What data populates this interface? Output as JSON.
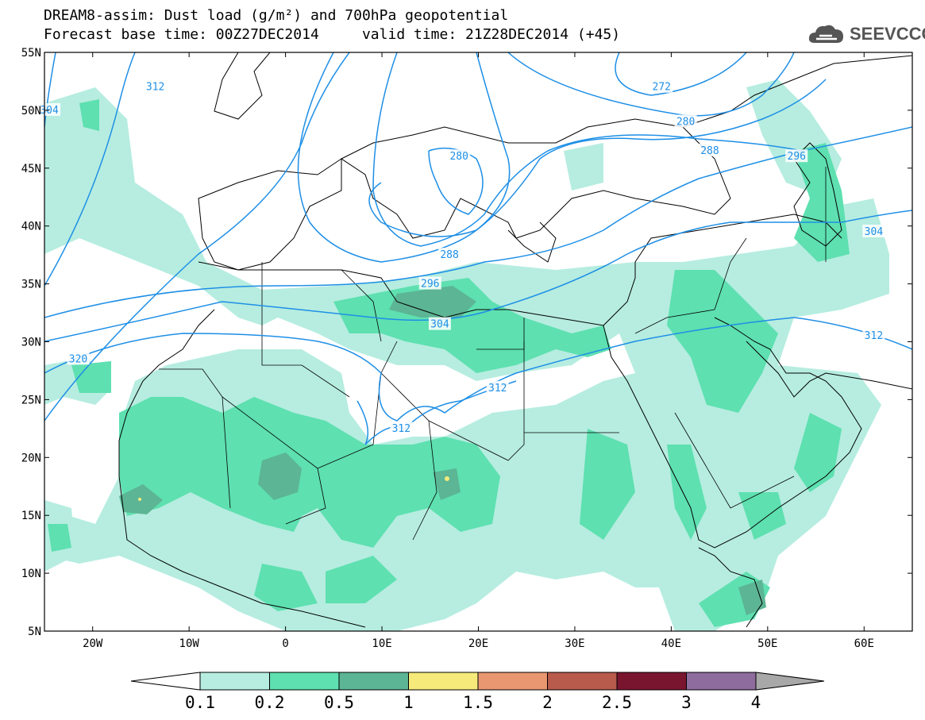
{
  "header": {
    "title": "DREAM8-assim: Dust load (g/m²) and 700hPa geopotential",
    "subtitle": "Forecast base time: 00Z27DEC2014     valid time: 21Z28DEC2014 (+45)"
  },
  "logo": {
    "text": "SEEVCCC",
    "icon": "cloud-icon"
  },
  "axes": {
    "lat_labels": [
      "55N",
      "50N",
      "45N",
      "40N",
      "35N",
      "30N",
      "25N",
      "20N",
      "15N",
      "10N",
      "5N"
    ],
    "lat_values": [
      55,
      50,
      45,
      40,
      35,
      30,
      25,
      20,
      15,
      10,
      5
    ],
    "lon_labels": [
      "20W",
      "10W",
      "0",
      "10E",
      "20E",
      "30E",
      "40E",
      "50E",
      "60E"
    ],
    "lon_values": [
      -20,
      -10,
      0,
      10,
      20,
      30,
      40,
      50,
      60
    ],
    "lon_range": [
      -25,
      65
    ],
    "lat_range": [
      5,
      55
    ],
    "grid": true
  },
  "contour_labels": [
    {
      "text": "312",
      "lon": -13.5,
      "lat": 52
    },
    {
      "text": "304",
      "lon": -24.5,
      "lat": 50
    },
    {
      "text": "272",
      "lon": 39,
      "lat": 52
    },
    {
      "text": "280",
      "lon": 41.5,
      "lat": 49
    },
    {
      "text": "288",
      "lon": 44,
      "lat": 46.5
    },
    {
      "text": "296",
      "lon": 53,
      "lat": 46
    },
    {
      "text": "280",
      "lon": 18,
      "lat": 46
    },
    {
      "text": "288",
      "lon": 17,
      "lat": 37.5
    },
    {
      "text": "296",
      "lon": 15,
      "lat": 35
    },
    {
      "text": "304",
      "lon": 16,
      "lat": 31.5
    },
    {
      "text": "304",
      "lon": 61,
      "lat": 39.5
    },
    {
      "text": "312",
      "lon": 61,
      "lat": 30.5
    },
    {
      "text": "320",
      "lon": -21.5,
      "lat": 28.5
    },
    {
      "text": "312",
      "lon": 22,
      "lat": 26
    },
    {
      "text": "312",
      "lon": 12,
      "lat": 22.5
    }
  ],
  "colorbar": {
    "labels": [
      "0.1",
      "0.2",
      "0.5",
      "1",
      "1.5",
      "2",
      "2.5",
      "3",
      "4"
    ],
    "colors": [
      "#ffffff",
      "#b6ede0",
      "#5ee0b0",
      "#5cb594",
      "#f5ea7a",
      "#e89770",
      "#b85a4c",
      "#7a1530",
      "#8e6c9e",
      "#a8a8a8"
    ]
  },
  "colors": {
    "contour": "#1e8fe6",
    "coast": "#000000",
    "dust_light": "#b6ede0",
    "dust_mid": "#5ee0b0",
    "dust_dark": "#5cb594"
  }
}
